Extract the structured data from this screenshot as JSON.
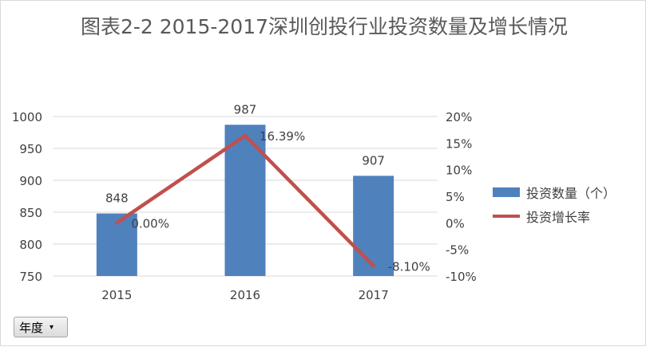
{
  "title": "图表2-2  2015-2017深圳创投行业投资数量及增长情况",
  "legend": {
    "bar_label": "投资数量（个）",
    "line_label": "投资增长率"
  },
  "field_button": {
    "label": "年度",
    "arrow": "▾"
  },
  "colors": {
    "bar": "#4f81bd",
    "line": "#c0504d",
    "text": "#404040",
    "grid": "#d9d9d9"
  },
  "chart_data": {
    "type": "bar",
    "categories": [
      "2015",
      "2016",
      "2017"
    ],
    "series": [
      {
        "name": "投资数量（个）",
        "type": "bar",
        "axis": "left",
        "values": [
          848,
          987,
          907
        ],
        "labels": [
          "848",
          "987",
          "907"
        ]
      },
      {
        "name": "投资增长率",
        "type": "line",
        "axis": "right",
        "values": [
          0.0,
          16.39,
          -8.1
        ],
        "labels": [
          "0.00%",
          "16.39%",
          "-8.10%"
        ]
      }
    ],
    "y_left": {
      "min": 750,
      "max": 1000,
      "ticks": [
        1000,
        950,
        900,
        850,
        800,
        750
      ],
      "tick_labels": [
        "1000",
        "950",
        "900",
        "850",
        "800",
        "750"
      ]
    },
    "y_right": {
      "min": -10,
      "max": 20,
      "ticks": [
        20,
        15,
        10,
        5,
        0,
        -5,
        -10
      ],
      "tick_labels": [
        "20%",
        "15%",
        "10%",
        "5%",
        "0%",
        "-5%",
        "-10%"
      ]
    },
    "grid": true,
    "legend_position": "right"
  }
}
